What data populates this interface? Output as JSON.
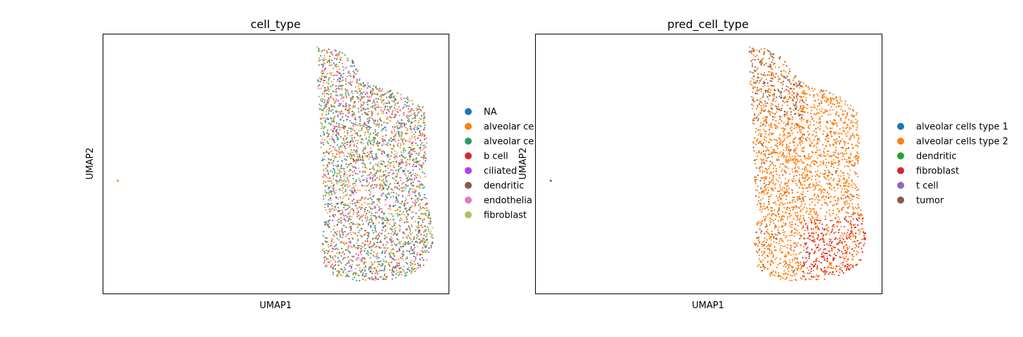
{
  "chart_data": [
    {
      "type": "scatter",
      "title": "cell_type",
      "xlabel": "UMAP1",
      "ylabel": "UMAP2",
      "grid": false,
      "legend_placement": "right-outside",
      "legend": [
        {
          "label": "NA",
          "color": "#1f77b4"
        },
        {
          "label": "alveolar ce",
          "color": "#ff7f0e"
        },
        {
          "label": "alveolar ce",
          "color": "#279e68"
        },
        {
          "label": "b cell",
          "color": "#d62728"
        },
        {
          "label": "ciliated",
          "color": "#aa40fc"
        },
        {
          "label": "dendritic",
          "color": "#8c564b"
        },
        {
          "label": "endothelia",
          "color": "#e377c2"
        },
        {
          "label": "fibroblast",
          "color": "#b5bd61"
        }
      ],
      "color_weights": [
        0.03,
        0.28,
        0.3,
        0.05,
        0.07,
        0.09,
        0.1,
        0.08
      ]
    },
    {
      "type": "scatter",
      "title": "pred_cell_type",
      "xlabel": "UMAP1",
      "ylabel": "UMAP2",
      "grid": false,
      "legend_placement": "right-outside",
      "legend": [
        {
          "label": "alveolar cells type 1",
          "color": "#1f77b4"
        },
        {
          "label": "alveolar cells type 2",
          "color": "#ff7f0e"
        },
        {
          "label": "dendritic",
          "color": "#2ca02c"
        },
        {
          "label": "fibroblast",
          "color": "#d62728"
        },
        {
          "label": "t cell",
          "color": "#9467bd"
        },
        {
          "label": "tumor",
          "color": "#8c564b"
        }
      ]
    }
  ]
}
